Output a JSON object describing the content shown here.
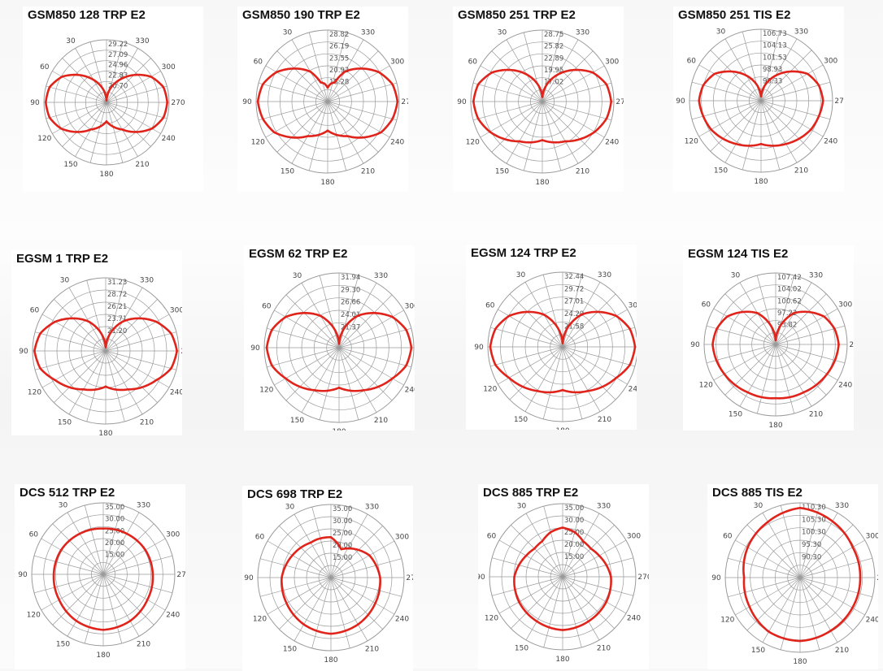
{
  "colors": {
    "trace": "#e0241b",
    "grid": "#9a9a9a",
    "background": "#ffffff"
  },
  "angle_labels": [
    "30",
    "60",
    "90",
    "120",
    "150",
    "180",
    "210",
    "240",
    "270",
    "300",
    "330"
  ],
  "chart_data": [
    {
      "type": "polar",
      "title": "GSM850 128 TRP E2",
      "radial_ticks": [
        "29.22",
        "27.09",
        "24.96",
        "22.83",
        "20.70"
      ],
      "rlim": [
        18.57,
        29.22
      ],
      "angles_deg": [
        0,
        30,
        60,
        75,
        90,
        105,
        120,
        150,
        180,
        210,
        240,
        255,
        270,
        285,
        300,
        330
      ],
      "values": [
        18.9,
        23.0,
        27.3,
        28.6,
        28.9,
        28.6,
        27.5,
        23.9,
        21.8,
        23.9,
        27.5,
        28.6,
        28.9,
        28.6,
        27.3,
        23.0
      ]
    },
    {
      "type": "polar",
      "title": "GSM850 190 TRP E2",
      "radial_ticks": [
        "28.82",
        "26.19",
        "23.55",
        "20.92",
        "18.28"
      ],
      "rlim": [
        15.65,
        28.82
      ],
      "angles_deg": [
        0,
        10,
        20,
        30,
        60,
        75,
        90,
        105,
        120,
        150,
        180,
        210,
        240,
        255,
        270,
        285,
        300,
        330,
        340,
        350
      ],
      "values": [
        18.2,
        19.0,
        19.4,
        22.0,
        26.5,
        28.0,
        28.5,
        28.0,
        27.0,
        23.0,
        21.0,
        23.0,
        27.0,
        28.0,
        28.5,
        28.0,
        26.5,
        22.0,
        19.4,
        19.0
      ]
    },
    {
      "type": "polar",
      "title": "GSM850 251 TRP E2",
      "radial_ticks": [
        "28.75",
        "25.82",
        "22.89",
        "19.95",
        "17.02"
      ],
      "rlim": [
        14.09,
        28.75
      ],
      "angles_deg": [
        0,
        30,
        60,
        75,
        90,
        105,
        120,
        150,
        180,
        210,
        240,
        255,
        270,
        285,
        300,
        330
      ],
      "values": [
        15.0,
        20.5,
        26.0,
        27.7,
        28.2,
        27.7,
        26.5,
        23.5,
        22.0,
        23.5,
        26.5,
        27.7,
        28.2,
        27.7,
        26.0,
        20.5
      ]
    },
    {
      "type": "polar",
      "title": "GSM850 251 TIS E2",
      "radial_ticks": [
        "106.73",
        "104.13",
        "101.53",
        "98.93",
        "96.33"
      ],
      "rlim": [
        93.73,
        106.73
      ],
      "angles_deg": [
        0,
        30,
        60,
        75,
        90,
        105,
        120,
        150,
        180,
        210,
        240,
        255,
        270,
        285,
        300,
        330
      ],
      "values": [
        94.5,
        99.0,
        103.5,
        104.6,
        105.0,
        104.6,
        104.2,
        102.8,
        101.6,
        102.8,
        104.2,
        104.6,
        105.0,
        104.6,
        103.5,
        99.0
      ]
    },
    {
      "type": "polar",
      "title": "EGSM 1 TRP E2",
      "radial_ticks": [
        "31.23",
        "28.72",
        "26.21",
        "23.71",
        "21.20"
      ],
      "rlim": [
        18.69,
        31.23
      ],
      "angles_deg": [
        0,
        30,
        60,
        75,
        90,
        105,
        120,
        150,
        180,
        210,
        240,
        255,
        270,
        285,
        300,
        330
      ],
      "values": [
        19.3,
        24.5,
        28.7,
        30.3,
        30.9,
        30.3,
        28.7,
        26.3,
        24.8,
        26.3,
        28.7,
        30.3,
        30.9,
        30.3,
        28.7,
        24.5
      ]
    },
    {
      "type": "polar",
      "title": "EGSM 62 TRP E2",
      "radial_ticks": [
        "31.94",
        "29.30",
        "26.66",
        "24.01",
        "21.37"
      ],
      "rlim": [
        18.73,
        31.94
      ],
      "angles_deg": [
        0,
        30,
        60,
        75,
        90,
        105,
        120,
        150,
        180,
        210,
        240,
        255,
        270,
        285,
        300,
        330
      ],
      "values": [
        19.4,
        25.2,
        29.6,
        31.0,
        31.5,
        31.0,
        29.6,
        27.4,
        25.8,
        27.4,
        29.6,
        31.0,
        31.5,
        31.0,
        29.6,
        25.2
      ]
    },
    {
      "type": "polar",
      "title": "EGSM 124 TRP E2",
      "radial_ticks": [
        "32.44",
        "29.72",
        "27.01",
        "24.29",
        "21.58"
      ],
      "rlim": [
        18.86,
        32.44
      ],
      "angles_deg": [
        0,
        30,
        60,
        75,
        90,
        105,
        120,
        150,
        180,
        210,
        240,
        255,
        270,
        285,
        300,
        330
      ],
      "values": [
        19.5,
        25.6,
        30.1,
        31.5,
        32.0,
        31.5,
        30.1,
        28.1,
        26.7,
        28.1,
        30.1,
        31.5,
        32.0,
        31.5,
        30.1,
        25.6
      ]
    },
    {
      "type": "polar",
      "title": "EGSM 124 TIS E2",
      "radial_ticks": [
        "107.42",
        "104.02",
        "100.62",
        "97.22",
        "93.82"
      ],
      "rlim": [
        90.42,
        107.42
      ],
      "angles_deg": [
        0,
        30,
        60,
        75,
        90,
        105,
        120,
        150,
        180,
        210,
        240,
        255,
        270,
        285,
        300,
        330
      ],
      "values": [
        91.4,
        99.0,
        103.7,
        104.9,
        105.4,
        105.0,
        104.5,
        103.6,
        103.2,
        103.6,
        104.5,
        105.0,
        105.4,
        104.9,
        103.7,
        99.0
      ]
    },
    {
      "type": "polar",
      "title": "DCS 512 TRP E2",
      "radial_ticks": [
        "35.00",
        "30.00",
        "25.00",
        "20.00",
        "15.00"
      ],
      "rlim": [
        10.0,
        35.0
      ],
      "angles_deg": [
        0,
        30,
        60,
        90,
        120,
        150,
        180,
        210,
        240,
        270,
        300,
        330
      ],
      "values": [
        26.0,
        26.4,
        27.0,
        27.3,
        27.8,
        28.8,
        29.4,
        28.8,
        27.8,
        27.3,
        27.0,
        26.4
      ]
    },
    {
      "type": "polar",
      "title": "DCS 698 TRP E2",
      "radial_ticks": [
        "35.00",
        "30.00",
        "25.00",
        "20.00",
        "15.00"
      ],
      "rlim": [
        10.0,
        35.0
      ],
      "angles_deg": [
        0,
        20,
        30,
        60,
        90,
        120,
        150,
        180,
        210,
        240,
        270,
        300,
        330,
        340
      ],
      "values": [
        23.8,
        23.9,
        23.8,
        25.2,
        26.8,
        27.5,
        28.5,
        29.2,
        28.5,
        27.5,
        26.8,
        25.2,
        21.5,
        20.3
      ]
    },
    {
      "type": "polar",
      "title": "DCS 885 TRP E2",
      "radial_ticks": [
        "35.00",
        "30.00",
        "25.00",
        "20.00",
        "15.00"
      ],
      "rlim": [
        10.0,
        35.0
      ],
      "angles_deg": [
        0,
        15,
        30,
        45,
        60,
        90,
        120,
        150,
        180,
        210,
        240,
        270,
        300,
        315,
        330,
        345
      ],
      "values": [
        26.8,
        25.8,
        24.0,
        23.6,
        24.4,
        26.5,
        27.2,
        27.6,
        28.2,
        27.6,
        27.2,
        26.5,
        24.4,
        23.6,
        24.0,
        25.8
      ]
    },
    {
      "type": "polar",
      "title": "DCS 885 TIS E2",
      "radial_ticks": [
        "110.30",
        "105.30",
        "100.30",
        "95.30",
        "90.30"
      ],
      "rlim": [
        85.3,
        110.3
      ],
      "angles_deg": [
        0,
        30,
        60,
        90,
        120,
        150,
        180,
        210,
        240,
        270,
        300,
        330
      ],
      "values": [
        108.6,
        106.8,
        105.5,
        104.0,
        104.8,
        106.2,
        106.5,
        105.8,
        105.5,
        105.4,
        105.6,
        107.0
      ]
    }
  ]
}
